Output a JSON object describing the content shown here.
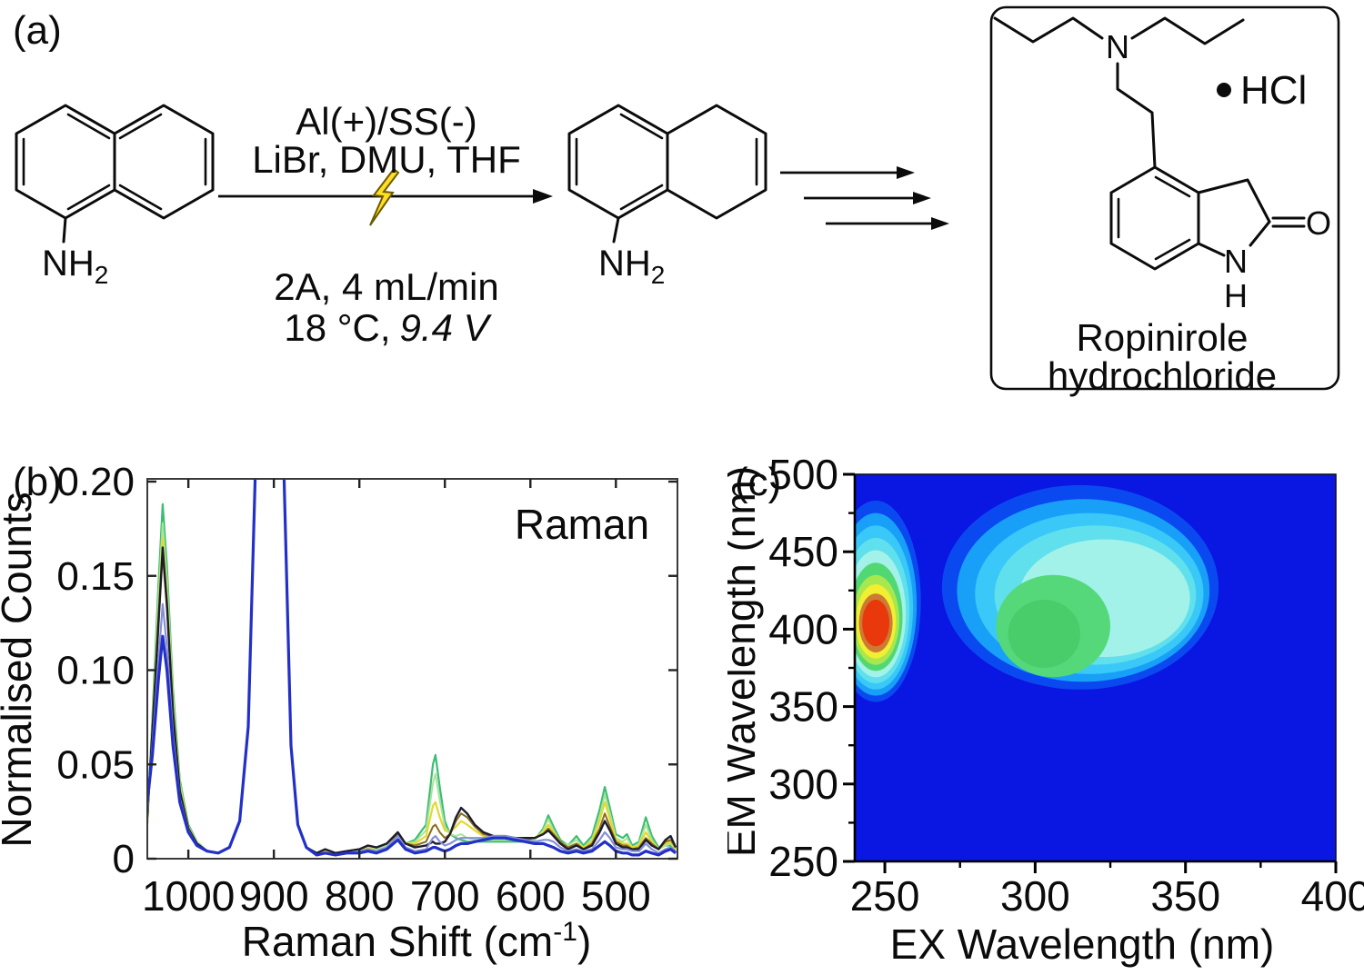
{
  "panel_a": {
    "label": "(a)",
    "reactant": {
      "label_main": "NH",
      "label_sub": "2"
    },
    "intermediate": {
      "label_main": "NH",
      "label_sub": "2"
    },
    "conditions_above": [
      "Al(+)/SS(-)",
      "LiBr, DMU, THF"
    ],
    "conditions_below_line1": "2A, 4 mL/min",
    "conditions_below_line2_upright": "18 °C,",
    "conditions_below_line2_italic": "9.4 V",
    "product": {
      "salt_label": "HCl",
      "amine_n_label": "N",
      "lactam_n_label": "N",
      "lactam_h_label": "H",
      "carbonyl_o_label": "O",
      "name_line1": "Ropinirole",
      "name_line2": "hydrochloride"
    }
  },
  "chart_data": [
    {
      "type": "line",
      "panel_label": "(b)",
      "annotation": "Raman",
      "xlabel_parts": [
        "Raman Shift (cm",
        "-1",
        ")"
      ],
      "ylabel": "Normalised Counts",
      "xlim": [
        1048,
        428
      ],
      "x_reversed": true,
      "ylim": [
        0,
        0.2
      ],
      "xticks": [
        1000,
        900,
        800,
        700,
        600,
        500
      ],
      "xtick_labels": [
        "1000",
        "900",
        "800",
        "700",
        "600",
        "500"
      ],
      "yticks": [
        0,
        0.05,
        0.1,
        0.15,
        0.2
      ],
      "ytick_labels": [
        "0",
        "0.05",
        "0.10",
        "0.15",
        "0.20"
      ],
      "grid": false,
      "x": [
        1048,
        1042,
        1035,
        1030,
        1025,
        1018,
        1010,
        1000,
        990,
        978,
        965,
        952,
        940,
        930,
        922,
        915,
        905,
        895,
        888,
        880,
        872,
        862,
        850,
        840,
        828,
        815,
        800,
        790,
        780,
        768,
        755,
        746,
        735,
        722,
        714,
        711,
        706,
        700,
        694,
        687,
        681,
        674,
        665,
        655,
        643,
        630,
        618,
        606,
        595,
        585,
        579,
        573,
        565,
        556,
        546,
        538,
        528,
        519,
        513,
        507,
        500,
        492,
        487,
        481,
        473,
        465,
        458,
        450,
        442,
        436,
        430
      ],
      "series": [
        {
          "name": "green",
          "color": "#3dbd72",
          "width": 2.2,
          "values": [
            0.018,
            0.075,
            0.145,
            0.188,
            0.155,
            0.09,
            0.042,
            0.018,
            0.009,
            0.004,
            0.003,
            0.006,
            0.02,
            0.07,
            0.2,
            0.5,
            0.6,
            0.5,
            0.2,
            0.06,
            0.018,
            0.006,
            0.003,
            0.004,
            0.003,
            0.004,
            0.005,
            0.006,
            0.005,
            0.007,
            0.012,
            0.008,
            0.01,
            0.018,
            0.05,
            0.055,
            0.038,
            0.02,
            0.013,
            0.011,
            0.01,
            0.009,
            0.009,
            0.009,
            0.009,
            0.009,
            0.009,
            0.009,
            0.01,
            0.016,
            0.023,
            0.017,
            0.01,
            0.007,
            0.012,
            0.007,
            0.012,
            0.026,
            0.038,
            0.027,
            0.013,
            0.011,
            0.013,
            0.007,
            0.009,
            0.022,
            0.012,
            0.006,
            0.007,
            0.007,
            0.005
          ]
        },
        {
          "name": "light-green",
          "color": "#a8e49a",
          "width": 2,
          "values": [
            0.02,
            0.072,
            0.138,
            0.178,
            0.148,
            0.086,
            0.04,
            0.017,
            0.009,
            0.004,
            0.003,
            0.006,
            0.02,
            0.07,
            0.2,
            0.5,
            0.6,
            0.5,
            0.2,
            0.06,
            0.018,
            0.006,
            0.003,
            0.004,
            0.003,
            0.004,
            0.005,
            0.006,
            0.005,
            0.007,
            0.012,
            0.008,
            0.009,
            0.015,
            0.04,
            0.045,
            0.031,
            0.017,
            0.013,
            0.012,
            0.013,
            0.011,
            0.01,
            0.01,
            0.01,
            0.01,
            0.01,
            0.01,
            0.01,
            0.015,
            0.021,
            0.015,
            0.009,
            0.007,
            0.01,
            0.006,
            0.01,
            0.022,
            0.034,
            0.024,
            0.011,
            0.009,
            0.011,
            0.006,
            0.008,
            0.018,
            0.01,
            0.005,
            0.007,
            0.008,
            0.005
          ]
        },
        {
          "name": "yellow",
          "color": "#e3d931",
          "width": 2.2,
          "values": [
            0.02,
            0.07,
            0.13,
            0.17,
            0.14,
            0.082,
            0.038,
            0.017,
            0.008,
            0.004,
            0.003,
            0.006,
            0.02,
            0.07,
            0.2,
            0.5,
            0.6,
            0.5,
            0.2,
            0.06,
            0.018,
            0.006,
            0.003,
            0.004,
            0.003,
            0.004,
            0.005,
            0.006,
            0.006,
            0.008,
            0.013,
            0.008,
            0.008,
            0.012,
            0.028,
            0.03,
            0.022,
            0.015,
            0.014,
            0.017,
            0.02,
            0.018,
            0.015,
            0.012,
            0.011,
            0.011,
            0.01,
            0.01,
            0.011,
            0.014,
            0.018,
            0.014,
            0.009,
            0.006,
            0.008,
            0.006,
            0.009,
            0.02,
            0.03,
            0.021,
            0.01,
            0.008,
            0.008,
            0.006,
            0.007,
            0.014,
            0.009,
            0.005,
            0.008,
            0.009,
            0.005
          ]
        },
        {
          "name": "olive",
          "color": "#8a6d1d",
          "width": 2,
          "values": [
            0.024,
            0.066,
            0.122,
            0.162,
            0.132,
            0.076,
            0.035,
            0.016,
            0.008,
            0.004,
            0.003,
            0.006,
            0.02,
            0.07,
            0.2,
            0.5,
            0.6,
            0.5,
            0.2,
            0.06,
            0.018,
            0.006,
            0.003,
            0.005,
            0.003,
            0.004,
            0.005,
            0.007,
            0.006,
            0.008,
            0.013,
            0.008,
            0.007,
            0.009,
            0.017,
            0.018,
            0.014,
            0.011,
            0.013,
            0.02,
            0.024,
            0.022,
            0.017,
            0.013,
            0.012,
            0.011,
            0.011,
            0.01,
            0.011,
            0.013,
            0.016,
            0.013,
            0.009,
            0.006,
            0.008,
            0.005,
            0.008,
            0.016,
            0.024,
            0.017,
            0.009,
            0.007,
            0.007,
            0.005,
            0.006,
            0.011,
            0.008,
            0.005,
            0.009,
            0.01,
            0.006
          ]
        },
        {
          "name": "dark",
          "color": "#1c1c30",
          "width": 2.4,
          "values": [
            0.022,
            0.068,
            0.125,
            0.165,
            0.135,
            0.078,
            0.036,
            0.016,
            0.008,
            0.004,
            0.003,
            0.006,
            0.02,
            0.07,
            0.2,
            0.5,
            0.6,
            0.5,
            0.2,
            0.06,
            0.018,
            0.006,
            0.003,
            0.005,
            0.003,
            0.004,
            0.005,
            0.007,
            0.006,
            0.008,
            0.014,
            0.008,
            0.006,
            0.007,
            0.009,
            0.008,
            0.008,
            0.009,
            0.013,
            0.022,
            0.027,
            0.024,
            0.018,
            0.014,
            0.012,
            0.012,
            0.011,
            0.011,
            0.011,
            0.013,
            0.015,
            0.012,
            0.008,
            0.005,
            0.007,
            0.005,
            0.007,
            0.014,
            0.02,
            0.015,
            0.008,
            0.006,
            0.006,
            0.005,
            0.005,
            0.01,
            0.007,
            0.005,
            0.01,
            0.012,
            0.006
          ]
        },
        {
          "name": "light-blue",
          "color": "#8690d8",
          "width": 2.2,
          "values": [
            0.026,
            0.06,
            0.105,
            0.135,
            0.112,
            0.066,
            0.032,
            0.015,
            0.007,
            0.004,
            0.003,
            0.006,
            0.02,
            0.07,
            0.2,
            0.5,
            0.6,
            0.5,
            0.2,
            0.06,
            0.018,
            0.006,
            0.002,
            0.003,
            0.002,
            0.003,
            0.004,
            0.005,
            0.004,
            0.006,
            0.012,
            0.006,
            0.004,
            0.005,
            0.011,
            0.012,
            0.009,
            0.007,
            0.008,
            0.01,
            0.011,
            0.011,
            0.011,
            0.011,
            0.012,
            0.012,
            0.011,
            0.01,
            0.009,
            0.01,
            0.01,
            0.009,
            0.006,
            0.004,
            0.005,
            0.004,
            0.005,
            0.01,
            0.014,
            0.011,
            0.006,
            0.005,
            0.005,
            0.004,
            0.004,
            0.008,
            0.005,
            0.003,
            0.005,
            0.006,
            0.004
          ]
        },
        {
          "name": "blue",
          "color": "#2330c8",
          "width": 3.2,
          "values": [
            0.03,
            0.055,
            0.095,
            0.118,
            0.1,
            0.06,
            0.03,
            0.014,
            0.007,
            0.004,
            0.003,
            0.006,
            0.02,
            0.07,
            0.2,
            0.5,
            0.6,
            0.5,
            0.2,
            0.06,
            0.018,
            0.006,
            0.002,
            0.003,
            0.002,
            0.003,
            0.003,
            0.004,
            0.003,
            0.005,
            0.01,
            0.005,
            0.003,
            0.004,
            0.006,
            0.006,
            0.005,
            0.004,
            0.005,
            0.007,
            0.008,
            0.008,
            0.009,
            0.01,
            0.011,
            0.011,
            0.01,
            0.009,
            0.008,
            0.008,
            0.007,
            0.006,
            0.004,
            0.003,
            0.004,
            0.003,
            0.004,
            0.007,
            0.009,
            0.007,
            0.004,
            0.003,
            0.003,
            0.002,
            0.002,
            0.004,
            0.003,
            0.002,
            0.004,
            0.005,
            0.003
          ]
        }
      ]
    },
    {
      "type": "contour",
      "panel_label": "(c)",
      "xlabel": "EX Wavelength (nm)",
      "ylabel": "EM Wavelength (nm)",
      "xlim": [
        240,
        400
      ],
      "ylim": [
        250,
        500
      ],
      "xticks": [
        250,
        300,
        350,
        400
      ],
      "xtick_labels": [
        "250",
        "300",
        "350",
        "400"
      ],
      "x_minor_ticks": [
        275,
        325,
        375
      ],
      "yticks": [
        250,
        300,
        350,
        400,
        450,
        500
      ],
      "ytick_labels": [
        "250",
        "300",
        "350",
        "400",
        "450",
        "500"
      ],
      "y_minor_ticks": [
        275,
        325,
        375,
        425,
        475
      ],
      "background_color": "#0a16e2",
      "colorscale_hex": [
        "#0a16e2",
        "#0b49f0",
        "#18a0f8",
        "#3ac8f8",
        "#5fe0ec",
        "#a2f2ea",
        "#52d873",
        "#a8e84e",
        "#f2ee32",
        "#cd7a32",
        "#e8380c"
      ],
      "level_keys": [
        "ex_center",
        "em_center",
        "ex_radius",
        "em_radius",
        "color"
      ],
      "hotspots": [
        {
          "name": "uv-excitation-hotspot",
          "levels": [
            [
              247,
              418,
              15.0,
              65,
              "#0b49f0"
            ],
            [
              247,
              416,
              13.6,
              59,
              "#18a0f8"
            ],
            [
              247,
              414,
              12.4,
              53,
              "#3ac8f8"
            ],
            [
              247,
              412,
              11.2,
              47,
              "#5fe0ec"
            ],
            [
              247,
              410,
              10.0,
              41,
              "#a2f2ea"
            ],
            [
              247,
              408,
              8.9,
              35,
              "#52d873"
            ],
            [
              247,
              406,
              7.8,
              29,
              "#a8e84e"
            ],
            [
              247,
              405,
              6.7,
              24,
              "#f2ee32"
            ],
            [
              247,
              404,
              5.6,
              19,
              "#cd7a32"
            ],
            [
              247,
              404,
              4.5,
              15,
              "#e8380c"
            ]
          ],
          "inner_patches": []
        },
        {
          "name": "broad-excitation-hotspot",
          "levels": [
            [
              315,
              427,
              46,
              66,
              "#0b49f0"
            ],
            [
              316,
              425,
              42,
              59,
              "#18a0f8"
            ],
            [
              318,
              423,
              38,
              52,
              "#3ac8f8"
            ],
            [
              320,
              422,
              33.5,
              45,
              "#5fe0ec"
            ],
            [
              323,
              420,
              28.5,
              38,
              "#a2f2ea"
            ]
          ],
          "inner_patches": [
            [
              306,
              402,
              19,
              33,
              "#55d87a"
            ],
            [
              303,
              397,
              12,
              22,
              "#49cd6b"
            ]
          ]
        }
      ]
    }
  ]
}
